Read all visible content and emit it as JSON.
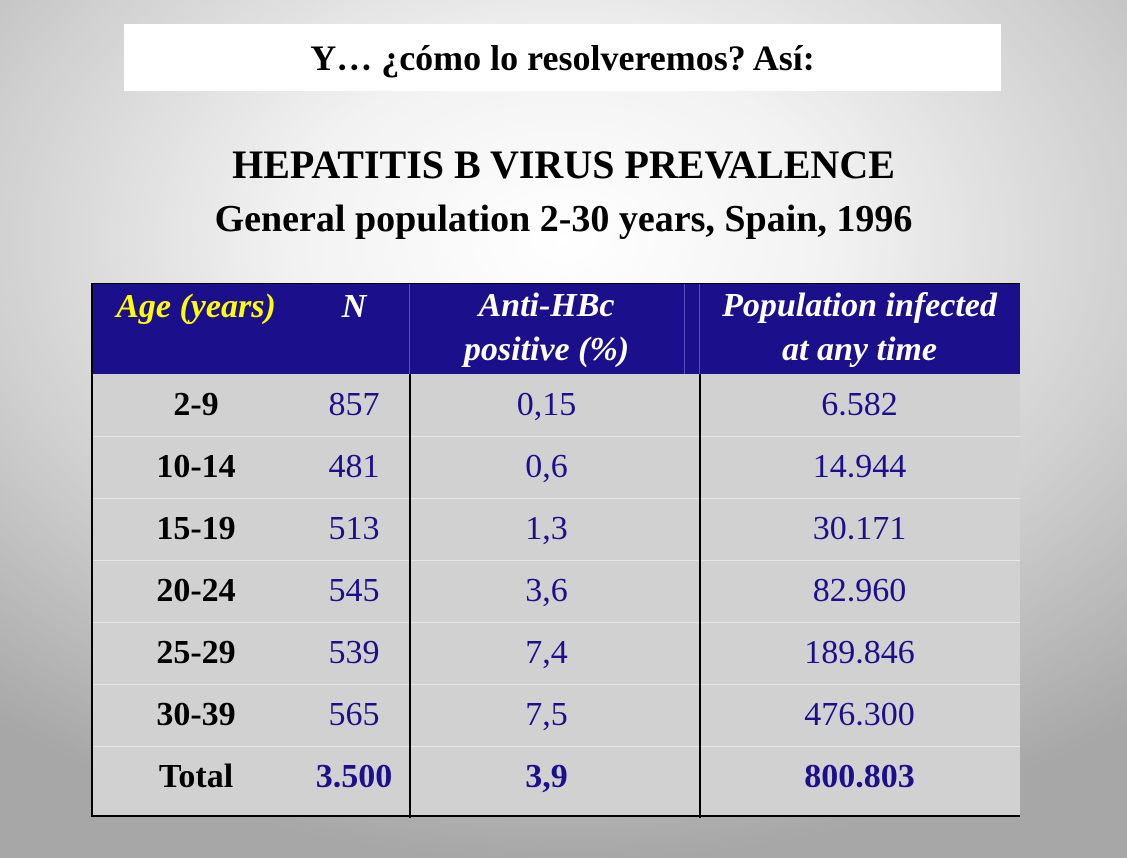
{
  "slide": {
    "header": "Y… ¿cómo lo resolveremos? Así:",
    "title": "HEPATITIS B VIRUS PREVALENCE",
    "subtitle": "General population 2-30 years, Spain, 1996"
  },
  "table": {
    "headers": {
      "age": "Age (years)",
      "n": "N",
      "anti_line1": "Anti-HBc",
      "anti_line2": "positive (%)",
      "pop_line1": "Population infected",
      "pop_line2": "at any time"
    },
    "rows": [
      {
        "age": "2-9",
        "n": "857",
        "anti": "0,15",
        "pop": "6.582"
      },
      {
        "age": "10-14",
        "n": "481",
        "anti": "0,6",
        "pop": "14.944"
      },
      {
        "age": "15-19",
        "n": "513",
        "anti": "1,3",
        "pop": "30.171"
      },
      {
        "age": "20-24",
        "n": "545",
        "anti": "3,6",
        "pop": "82.960"
      },
      {
        "age": "25-29",
        "n": "539",
        "anti": "7,4",
        "pop": "189.846"
      },
      {
        "age": "30-39",
        "n": "565",
        "anti": "7,5",
        "pop": "476.300"
      }
    ],
    "total": {
      "age": "Total",
      "n": "3.500",
      "anti": "3,9",
      "pop": "800.803"
    }
  },
  "colors": {
    "header_bg": "#1c0f8c",
    "header_text": "#ffffff",
    "age_header_text": "#ffff00",
    "value_text": "#1c0f8c",
    "table_bg": "#d1d1d1"
  }
}
